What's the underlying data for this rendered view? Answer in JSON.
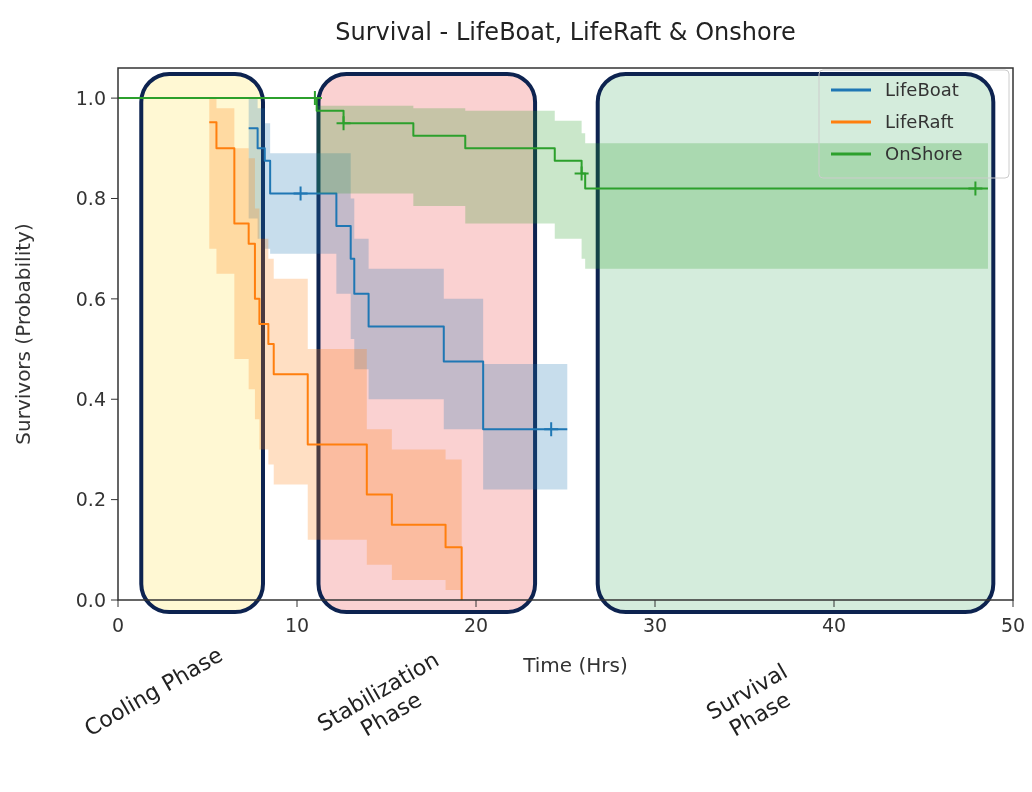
{
  "chart_data": {
    "type": "step",
    "title": "Survival - LifeBoat, LifeRaft & Onshore",
    "xlabel": "Time (Hrs)",
    "ylabel": "Survivors (Probability)",
    "xlim": [
      0,
      50
    ],
    "xticks": [
      0,
      10,
      20,
      30,
      40,
      50
    ],
    "ylim": [
      0,
      1.06
    ],
    "yticks": [
      {
        "value": 0,
        "label": "0.0"
      },
      {
        "value": 0.2,
        "label": "0.2"
      },
      {
        "value": 0.4,
        "label": "0.4"
      },
      {
        "value": 0.6,
        "label": "0.6"
      },
      {
        "value": 0.8,
        "label": "0.8"
      },
      {
        "value": 1,
        "label": "1.0"
      }
    ],
    "legend": "top right",
    "grid": false,
    "series": [
      {
        "name": "LifeBoat",
        "color": "#1f77b4",
        "x": [
          0,
          7.3,
          7.8,
          8.2,
          8.5,
          12.2,
          13,
          13.2,
          14,
          18.2,
          20.4,
          25.1
        ],
        "values": [
          null,
          0.94,
          0.9,
          0.875,
          0.81,
          0.745,
          0.68,
          0.61,
          0.545,
          0.475,
          0.34,
          0.34
        ],
        "lower": [
          1,
          0.76,
          0.72,
          0.7,
          0.69,
          0.61,
          0.52,
          0.46,
          0.4,
          0.34,
          0.22,
          0.22
        ],
        "upper": [
          1,
          1,
          0.98,
          0.95,
          0.89,
          0.89,
          0.8,
          0.72,
          0.66,
          0.6,
          0.47,
          0.47
        ]
      },
      {
        "name": "LifeRaft",
        "color": "#ff7f0e",
        "x": [
          0,
          5.1,
          5.5,
          6.5,
          7.3,
          7.65,
          7.9,
          8.4,
          8.7,
          10.6,
          13.9,
          15.3,
          18.3,
          19.2
        ],
        "values": [
          null,
          0.952,
          0.9,
          0.75,
          0.71,
          0.6,
          0.55,
          0.51,
          0.45,
          0.31,
          0.21,
          0.15,
          0.105,
          0
        ],
        "lower": [
          1,
          0.7,
          0.65,
          0.48,
          0.42,
          0.36,
          0.3,
          0.27,
          0.23,
          0.12,
          0.07,
          0.04,
          0.02,
          0
        ],
        "upper": [
          1,
          1,
          0.98,
          0.9,
          0.88,
          0.78,
          0.72,
          0.68,
          0.64,
          0.5,
          0.34,
          0.3,
          0.28,
          0
        ]
      },
      {
        "name": "OnShore",
        "color": "#2ca02c",
        "x": [
          0,
          11.1,
          12.6,
          16.5,
          19.4,
          24.4,
          25.9,
          26.1,
          48.6
        ],
        "values": [
          1,
          0.975,
          0.95,
          0.925,
          0.9,
          0.875,
          0.85,
          0.82,
          0.82
        ],
        "lower": [
          1,
          0.81,
          0.81,
          0.785,
          0.75,
          0.72,
          0.68,
          0.66,
          0.66
        ],
        "upper": [
          1,
          0.985,
          0.985,
          0.98,
          0.975,
          0.955,
          0.93,
          0.91,
          0.91
        ]
      },
      {
        "type": "scatter",
        "marker": "cross",
        "color": "#1f77b4",
        "x": [
          10.2,
          24.2
        ],
        "values": [
          0.81,
          0.34
        ]
      },
      {
        "type": "scatter",
        "marker": "cross",
        "color": "#2ca02c",
        "x": [
          11,
          12.6,
          25.9,
          47.9
        ],
        "values": [
          1,
          0.95,
          0.85,
          0.82
        ]
      }
    ],
    "bands": [
      {
        "axis": "x",
        "from": 1.3,
        "to": 8.1,
        "label": "Cooling Phase",
        "color": "#fff2a8"
      },
      {
        "axis": "x",
        "from": 11.2,
        "to": 23.3,
        "label": "Stabilization Phase",
        "color": "#f6a3a3"
      },
      {
        "axis": "x",
        "from": 26.8,
        "to": 48.9,
        "label": "Survival Phase",
        "color": "#a9d9ba"
      }
    ]
  }
}
